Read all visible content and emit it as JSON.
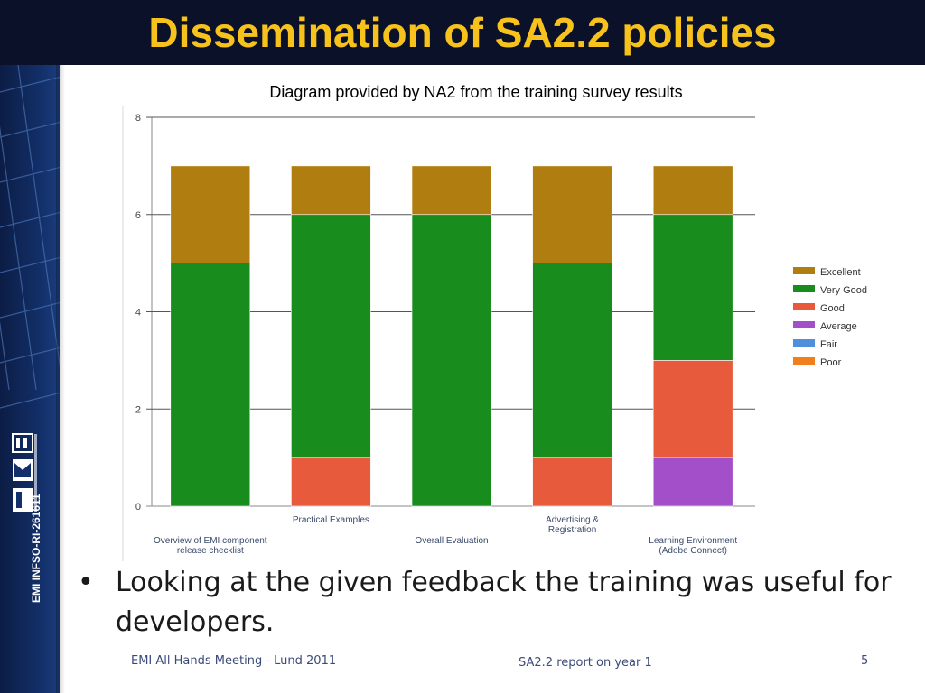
{
  "slide": {
    "title": "Dissemination of SA2.2 policies",
    "subtitle": "Diagram provided by NA2 from  the training survey results",
    "bullet": "Looking at the given feedback the training was useful for developers.",
    "sidebar_text": "EMI INFSO-RI-261611",
    "footer_left": "EMI All Hands Meeting - Lund 2011",
    "footer_center": "SA2.2 report on year 1",
    "page_number": "5"
  },
  "chart_data": {
    "type": "bar",
    "stacked": true,
    "categories": [
      [
        "Overview of EMI component",
        "release checklist"
      ],
      [
        "Practical Examples"
      ],
      [
        "Overall Evaluation"
      ],
      [
        "Advertising &",
        "Registration"
      ],
      [
        "Learning Environment",
        "(Adobe Connect)"
      ]
    ],
    "series": [
      {
        "name": "Poor",
        "color": "#f07f1c",
        "values": [
          0,
          0,
          0,
          0,
          0
        ]
      },
      {
        "name": "Fair",
        "color": "#4f8fdc",
        "values": [
          0,
          0,
          0,
          0,
          0
        ]
      },
      {
        "name": "Average",
        "color": "#a34fc9",
        "values": [
          0,
          0,
          0,
          0,
          1
        ]
      },
      {
        "name": "Good",
        "color": "#e85a3c",
        "values": [
          0,
          1,
          0,
          1,
          2
        ]
      },
      {
        "name": "Very Good",
        "color": "#188c1c",
        "values": [
          5,
          5,
          6,
          4,
          3
        ]
      },
      {
        "name": "Excellent",
        "color": "#b07e10",
        "values": [
          2,
          1,
          1,
          2,
          1
        ]
      }
    ],
    "legend_order": [
      "Excellent",
      "Very Good",
      "Good",
      "Average",
      "Fair",
      "Poor"
    ],
    "legend_position": "right",
    "yticks": [
      0,
      2,
      4,
      6,
      8
    ],
    "ylim": [
      0,
      8
    ],
    "grid": true,
    "title": "",
    "xlabel": "",
    "ylabel": ""
  }
}
